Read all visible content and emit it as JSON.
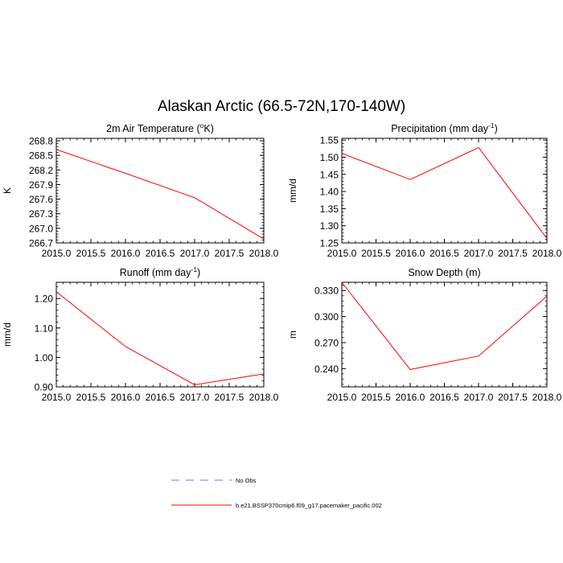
{
  "title": "Alaskan Arctic (66.5-72N,170-140W)",
  "legend": [
    {
      "label": "No Obs",
      "color": "#6e6ef0",
      "dash": true
    },
    {
      "label": "b.e21.BSSP370cmip6.f09_g17.pacemaker_pacific.002",
      "color": "#ff0000",
      "dash": false
    }
  ],
  "chart_data": [
    {
      "type": "line",
      "title": "2m Air Temperature (°K)",
      "title_parts": [
        "2m Air Temperature (",
        "o",
        "K)"
      ],
      "ylabel": "K",
      "x": [
        2015,
        2016,
        2017,
        2018
      ],
      "series": [
        {
          "values": [
            268.62,
            268.13,
            267.63,
            266.78
          ],
          "color": "#ff0000"
        }
      ],
      "xlim": [
        2015,
        2018
      ],
      "ylim": [
        266.7,
        268.85
      ],
      "xticks": [
        "2015.0",
        "2015.5",
        "2016.0",
        "2016.5",
        "2017.0",
        "2017.5",
        "2018.0"
      ],
      "yticks": [
        "266.7",
        "267.0",
        "267.3",
        "267.6",
        "267.9",
        "268.2",
        "268.5",
        "268.8"
      ]
    },
    {
      "type": "line",
      "title": "Precipitation (mm day-1)",
      "title_parts": [
        "Precipitation (mm day",
        "-1",
        ")"
      ],
      "ylabel": "mm/d",
      "x": [
        2015,
        2016,
        2017,
        2018
      ],
      "series": [
        {
          "values": [
            1.511,
            1.435,
            1.528,
            1.263
          ],
          "color": "#ff0000"
        }
      ],
      "xlim": [
        2015,
        2018
      ],
      "ylim": [
        1.25,
        1.555
      ],
      "xticks": [
        "2015.0",
        "2015.5",
        "2016.0",
        "2016.5",
        "2017.0",
        "2017.5",
        "2018.0"
      ],
      "yticks": [
        "1.25",
        "1.30",
        "1.35",
        "1.40",
        "1.45",
        "1.50",
        "1.55"
      ]
    },
    {
      "type": "line",
      "title": "Runoff (mm day-1)",
      "title_parts": [
        "Runoff (mm day",
        "-1",
        ")"
      ],
      "ylabel": "mm/d",
      "x": [
        2015,
        2016,
        2017,
        2018
      ],
      "series": [
        {
          "values": [
            1.223,
            1.037,
            0.907,
            0.944
          ],
          "color": "#ff0000"
        }
      ],
      "xlim": [
        2015,
        2018
      ],
      "ylim": [
        0.9,
        1.255
      ],
      "xticks": [
        "2015.0",
        "2015.5",
        "2016.0",
        "2016.5",
        "2017.0",
        "2017.5",
        "2018.0"
      ],
      "yticks": [
        "0.90",
        "1.00",
        "1.10",
        "1.20"
      ]
    },
    {
      "type": "line",
      "title": "Snow Depth (m)",
      "title_parts": [
        "Snow Depth (m)",
        "",
        ""
      ],
      "ylabel": "m",
      "x": [
        2015,
        2016,
        2017,
        2018
      ],
      "series": [
        {
          "values": [
            0.3395,
            0.239,
            0.2545,
            0.3235
          ],
          "color": "#ff0000"
        }
      ],
      "xlim": [
        2015,
        2018
      ],
      "ylim": [
        0.219,
        0.3395
      ],
      "xticks": [
        "2015.0",
        "2015.5",
        "2016.0",
        "2016.5",
        "2017.0",
        "2017.5",
        "2018.0"
      ],
      "yticks": [
        "0.240",
        "0.270",
        "0.300",
        "0.330"
      ]
    }
  ]
}
